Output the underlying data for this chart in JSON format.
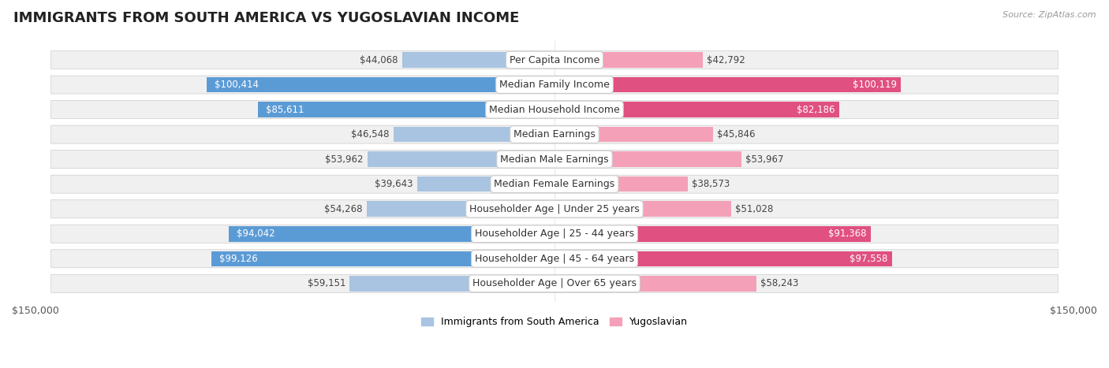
{
  "title": "IMMIGRANTS FROM SOUTH AMERICA VS YUGOSLAVIAN INCOME",
  "source": "Source: ZipAtlas.com",
  "categories": [
    "Per Capita Income",
    "Median Family Income",
    "Median Household Income",
    "Median Earnings",
    "Median Male Earnings",
    "Median Female Earnings",
    "Householder Age | Under 25 years",
    "Householder Age | 25 - 44 years",
    "Householder Age | 45 - 64 years",
    "Householder Age | Over 65 years"
  ],
  "left_values": [
    44068,
    100414,
    85611,
    46548,
    53962,
    39643,
    54268,
    94042,
    99126,
    59151
  ],
  "right_values": [
    42792,
    100119,
    82186,
    45846,
    53967,
    38573,
    51028,
    91368,
    97558,
    58243
  ],
  "left_labels": [
    "$44,068",
    "$100,414",
    "$85,611",
    "$46,548",
    "$53,962",
    "$39,643",
    "$54,268",
    "$94,042",
    "$99,126",
    "$59,151"
  ],
  "right_labels": [
    "$42,792",
    "$100,119",
    "$82,186",
    "$45,846",
    "$53,967",
    "$38,573",
    "$51,028",
    "$91,368",
    "$97,558",
    "$58,243"
  ],
  "left_color_normal": "#a8c4e0",
  "left_color_dark": "#5b9bd5",
  "right_color_normal": "#f4a0b8",
  "right_color_dark": "#e05080",
  "dark_threshold": 70000,
  "max_value": 150000,
  "legend_left": "Immigrants from South America",
  "legend_right": "Yugoslavian",
  "title_fontsize": 13,
  "label_fontsize": 8.5,
  "axis_fontsize": 9,
  "category_fontsize": 9
}
